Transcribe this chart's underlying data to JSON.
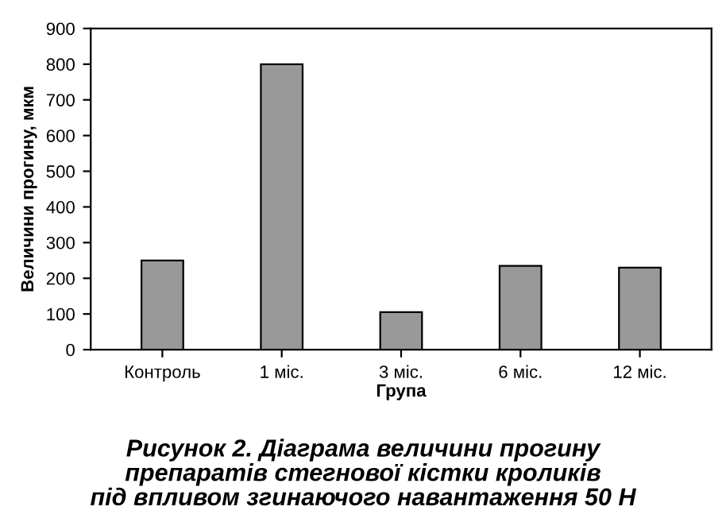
{
  "chart_data": {
    "type": "bar",
    "title": "Рисунок 2. Діаграма величини прогину\nпрепаратів стегнової кістки кроликів\nпід впливом згинаючого навантаження 50 Н",
    "xlabel": "Група",
    "ylabel": "Величини прогину, мкм",
    "categories": [
      "Контроль",
      "1 міс.",
      "3 міс.",
      "6 міс.",
      "12 міс."
    ],
    "values": [
      250,
      800,
      105,
      235,
      230
    ],
    "color": "#999999",
    "ylim": [
      0,
      900
    ],
    "yticks": [
      0,
      100,
      200,
      300,
      400,
      500,
      600,
      700,
      800,
      900
    ],
    "grid": false,
    "legend": false
  }
}
